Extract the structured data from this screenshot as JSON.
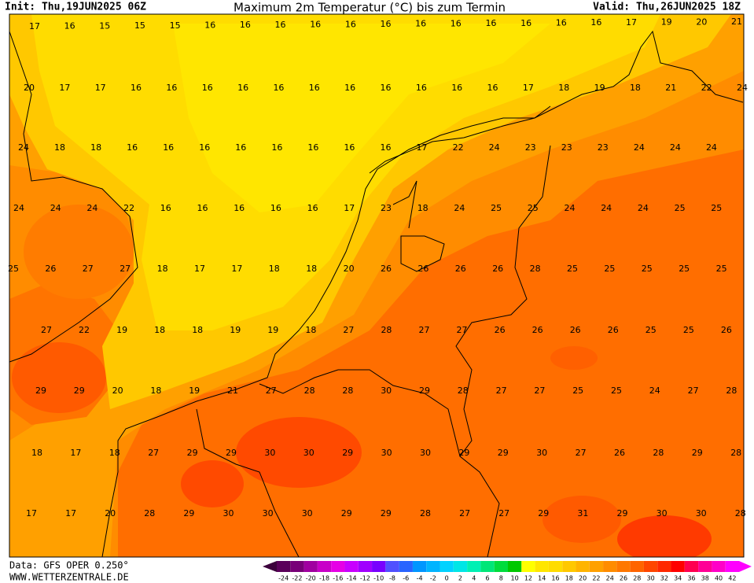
{
  "header": {
    "init": "Init: Thu,19JUN2025 06Z",
    "title": "Maximum 2m Temperatur (°C) bis zum Termin",
    "valid": "Valid: Thu,26JUN2025 18Z"
  },
  "map": {
    "rows": [
      [
        17,
        16,
        15,
        15,
        15,
        16,
        16,
        16,
        16,
        16,
        16,
        16,
        16,
        16,
        16,
        16,
        16,
        17,
        19,
        20,
        21
      ],
      [
        20,
        17,
        17,
        16,
        16,
        16,
        16,
        16,
        16,
        16,
        16,
        16,
        16,
        16,
        17,
        18,
        19,
        18,
        21,
        22,
        24
      ],
      [
        24,
        18,
        18,
        16,
        16,
        16,
        16,
        16,
        16,
        16,
        16,
        17,
        22,
        24,
        23,
        23,
        23,
        24,
        24,
        24
      ],
      [
        24,
        24,
        24,
        22,
        16,
        16,
        16,
        16,
        16,
        17,
        23,
        18,
        24,
        25,
        25,
        24,
        24,
        24,
        25,
        25
      ],
      [
        25,
        26,
        27,
        27,
        18,
        17,
        17,
        18,
        18,
        20,
        26,
        26,
        26,
        26,
        28,
        25,
        25,
        25,
        25,
        25
      ],
      [
        27,
        22,
        19,
        18,
        18,
        19,
        19,
        18,
        27,
        28,
        27,
        27,
        26,
        26,
        26,
        26,
        25,
        25,
        26
      ],
      [
        29,
        29,
        20,
        18,
        19,
        21,
        27,
        28,
        28,
        30,
        29,
        28,
        27,
        27,
        25,
        25,
        24,
        27,
        28
      ],
      [
        18,
        17,
        18,
        27,
        29,
        29,
        30,
        30,
        29,
        30,
        30,
        29,
        29,
        30,
        27,
        26,
        28,
        29,
        28
      ],
      [
        17,
        17,
        20,
        28,
        29,
        30,
        30,
        30,
        29,
        29,
        28,
        27,
        27,
        29,
        31,
        29,
        30,
        30,
        28
      ]
    ]
  },
  "footer": {
    "source": "Data: GFS OPER 0.250°",
    "site": "WWW.WETTERZENTRALE.DE"
  },
  "colorbar": {
    "ticks": [
      -24,
      -22,
      -20,
      -18,
      -16,
      -14,
      -12,
      -10,
      -8,
      -6,
      -4,
      -2,
      0,
      2,
      4,
      6,
      8,
      10,
      12,
      14,
      16,
      18,
      20,
      22,
      24,
      26,
      28,
      30,
      32,
      34,
      36,
      38,
      40,
      42
    ],
    "colors": [
      "#5a005a",
      "#780078",
      "#a000a0",
      "#c800c8",
      "#e600e6",
      "#c800ff",
      "#a000ff",
      "#7800ff",
      "#5050ff",
      "#2864ff",
      "#0096ff",
      "#00b4ff",
      "#00d2ff",
      "#00e6e6",
      "#00f0b4",
      "#00e678",
      "#00dc3c",
      "#00c800",
      "#ffff00",
      "#ffe600",
      "#ffdc00",
      "#ffc800",
      "#ffb400",
      "#ffa000",
      "#ff8c00",
      "#ff7800",
      "#ff6400",
      "#ff4600",
      "#ff2800",
      "#ff0000",
      "#ff0050",
      "#ff0096",
      "#ff00c8",
      "#ff00ff"
    ]
  }
}
